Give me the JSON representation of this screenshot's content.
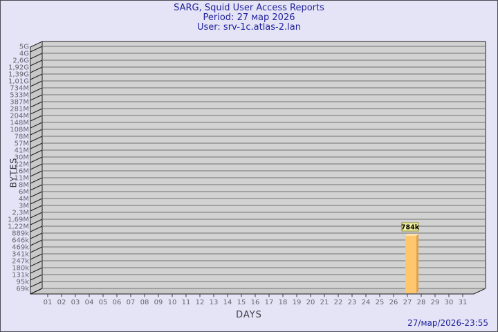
{
  "header": {
    "line1": "SARG, Squid User Access Reports",
    "line2": "Period: 27 мар 2026",
    "line3": "User: srv-1c.atlas-2.lan"
  },
  "footer": {
    "timestamp": "27/мар/2026-23:55"
  },
  "chart_data": {
    "type": "bar",
    "title": "SARG, Squid User Access Reports",
    "subtitle": "Period: 27 мар 2026",
    "user": "srv-1c.atlas-2.lan",
    "xlabel": "DAYS",
    "ylabel": "BYTES",
    "scale": "logarithmic",
    "grid": true,
    "style": "3d-bar",
    "x_categories": [
      "01",
      "02",
      "03",
      "04",
      "05",
      "06",
      "07",
      "08",
      "09",
      "10",
      "11",
      "12",
      "13",
      "14",
      "15",
      "16",
      "17",
      "18",
      "19",
      "20",
      "21",
      "22",
      "23",
      "24",
      "25",
      "26",
      "27",
      "28",
      "29",
      "30",
      "31"
    ],
    "y_ticks": [
      "5G",
      "4G",
      "2,6G",
      "1,92G",
      "1,39G",
      "1,01G",
      "734M",
      "533M",
      "387M",
      "281M",
      "204M",
      "148M",
      "108M",
      "78M",
      "57M",
      "41M",
      "30M",
      "22M",
      "16M",
      "11M",
      "8M",
      "6M",
      "4M",
      "3M",
      "2,3M",
      "1,69M",
      "1,22M",
      "889k",
      "646k",
      "469k",
      "341k",
      "247k",
      "180k",
      "131k",
      "95k",
      "69k"
    ],
    "bars": [
      {
        "day": "27",
        "value_label": "784k",
        "value_bytes": 784000
      }
    ],
    "colors": {
      "background": "#e4e4f6",
      "plot_bg": "#d2d2d2",
      "wall": "#c8c8c8",
      "floor": "#c9c9c9",
      "grid": "#717171",
      "frame": "#1c1c1c",
      "tick_text": "#63636e",
      "title_text": "#1f1f9c",
      "bar_front": "#fec76d",
      "bar_side": "#dfa14c",
      "bar_bevel": "#ffe2a4",
      "value_box_bg": "#f5f2a4",
      "value_box_border": "#8f8f2c",
      "value_text": "#000000"
    }
  }
}
